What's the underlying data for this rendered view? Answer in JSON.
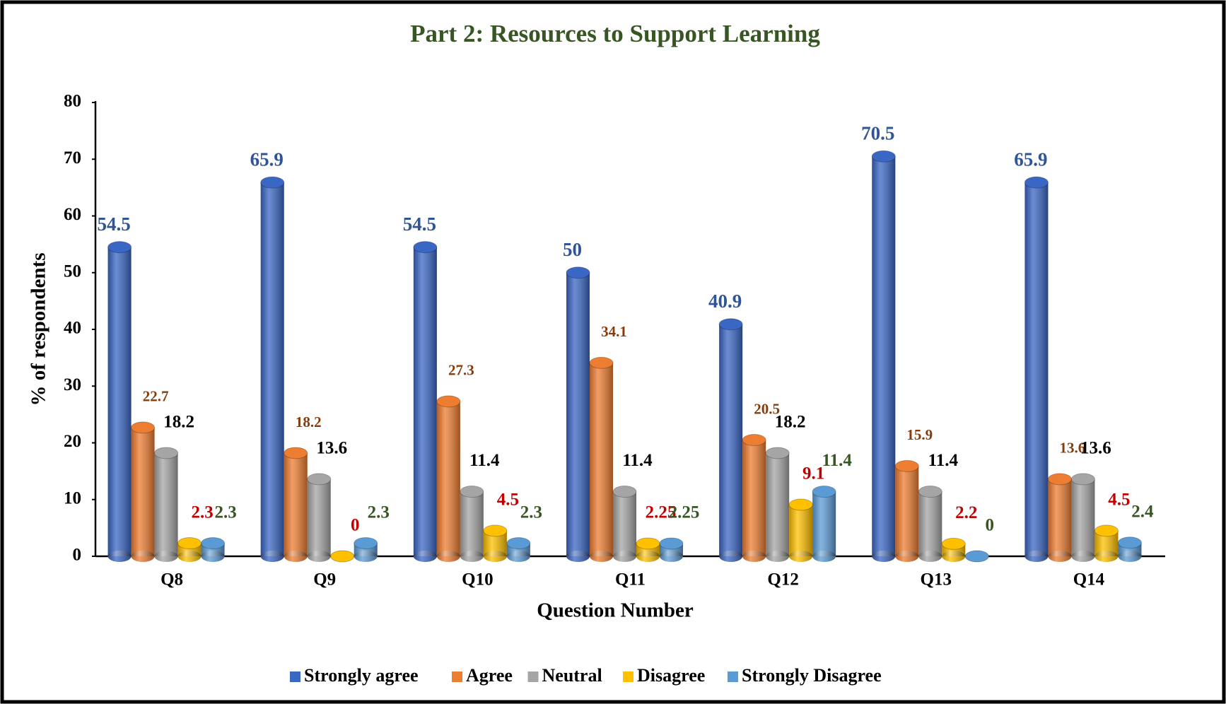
{
  "chart_data": {
    "type": "bar",
    "title": "Part 2: Resources to Support Learning",
    "x_label": "Question Number",
    "y_label": "% of respondents",
    "categories": [
      "Q8",
      "Q9",
      "Q10",
      "Q11",
      "Q12",
      "Q13",
      "Q14"
    ],
    "series": [
      {
        "name": "Strongly agree",
        "color": "#3a66c4",
        "label_color": "#2f5597",
        "values": [
          54.5,
          65.9,
          54.5,
          50,
          40.9,
          70.5,
          65.9
        ]
      },
      {
        "name": "Agree",
        "color": "#ed7d31",
        "label_color": "#843c0c",
        "values": [
          22.7,
          18.2,
          27.3,
          34.1,
          20.5,
          15.9,
          13.6
        ]
      },
      {
        "name": "Neutral",
        "color": "#a5a5a5",
        "label_color": "#000000",
        "values": [
          18.2,
          13.6,
          11.4,
          11.4,
          18.2,
          11.4,
          13.6
        ]
      },
      {
        "name": "Disagree",
        "color": "#ffc000",
        "label_color": "#c00000",
        "values": [
          2.3,
          0,
          4.5,
          2.25,
          9.1,
          2.2,
          4.5
        ]
      },
      {
        "name": "Strongly Disagree",
        "color": "#5b9bd5",
        "label_color": "#375623",
        "values": [
          2.3,
          2.3,
          2.3,
          2.25,
          11.4,
          0,
          2.4
        ]
      }
    ],
    "ylim": [
      0,
      80
    ],
    "yticks": [
      0,
      10,
      20,
      30,
      40,
      50,
      60,
      70,
      80
    ],
    "grid": false,
    "legend": "bottom"
  }
}
